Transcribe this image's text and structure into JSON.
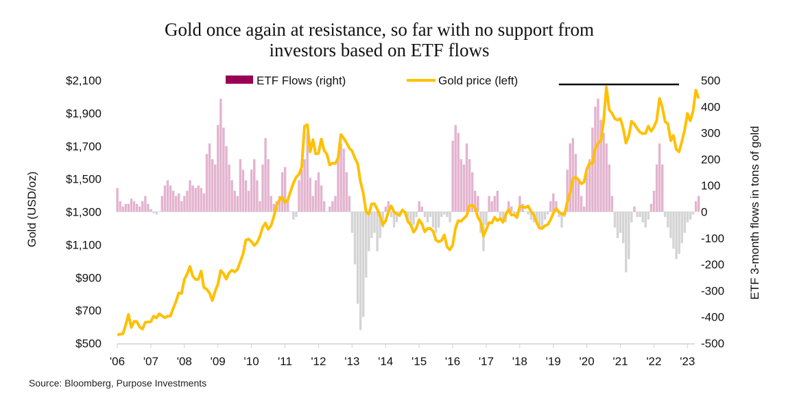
{
  "title_lines": [
    "Gold once again at resistance, so far with no support from",
    "investors based on ETF flows"
  ],
  "source": "Source: Bloomberg, Purpose Investments",
  "chart_data": {
    "type": "bar+line",
    "title": "Gold once again at resistance, so far with no support from investors based on ETF flows",
    "ylabel_left": "Gold (USD/oz)",
    "ylabel_right": "ETF 3-month flows in tons of gold",
    "ylim_left": [
      500,
      2100
    ],
    "ylim_right": [
      -500,
      500
    ],
    "left_ticks": [
      "$2,100",
      "$1,900",
      "$1,700",
      "$1,500",
      "$1,300",
      "$1,100",
      "$900",
      "$700",
      "$500"
    ],
    "left_tick_values": [
      2100,
      1900,
      1700,
      1500,
      1300,
      1100,
      900,
      700,
      500
    ],
    "right_ticks": [
      "500",
      "400",
      "300",
      "200",
      "100",
      "0",
      "-100",
      "-200",
      "-300",
      "-400",
      "-500"
    ],
    "right_tick_values": [
      500,
      400,
      300,
      200,
      100,
      0,
      -100,
      -200,
      -300,
      -400,
      -500
    ],
    "x_ticks": [
      "'06",
      "'07",
      "'08",
      "'09",
      "'10",
      "'11",
      "'12",
      "'13",
      "'14",
      "'15",
      "'16",
      "'17",
      "'18",
      "'19",
      "'20",
      "'21",
      "'22",
      "'23"
    ],
    "x_start": "2006-01",
    "x_frequency": "monthly",
    "grid": false,
    "legend_position": "top",
    "colors": {
      "etf_positive": "#e3b3cf",
      "etf_negative": "#d4d4d4",
      "etf_legend": "#990055",
      "gold": "#ffc000",
      "resistance": "#000000"
    },
    "resistance_line": {
      "value": 2075,
      "from": "2019-03",
      "to": "2022-10"
    },
    "series": [
      {
        "name": "ETF Flows (right)",
        "type": "bar",
        "axis": "right",
        "values": [
          90,
          40,
          20,
          30,
          30,
          50,
          40,
          30,
          20,
          40,
          60,
          30,
          10,
          -5,
          -10,
          0,
          60,
          100,
          120,
          100,
          80,
          60,
          70,
          40,
          60,
          80,
          120,
          100,
          90,
          100,
          90,
          70,
          220,
          260,
          200,
          180,
          330,
          430,
          320,
          250,
          180,
          120,
          80,
          60,
          200,
          160,
          120,
          80,
          160,
          200,
          120,
          40,
          180,
          280,
          200,
          60,
          30,
          40,
          60,
          150,
          170,
          50,
          0,
          -30,
          -20,
          120,
          160,
          200,
          300,
          130,
          60,
          120,
          150,
          100,
          40,
          0,
          20,
          40,
          60,
          200,
          260,
          240,
          150,
          60,
          -80,
          -200,
          -350,
          -450,
          -400,
          -250,
          -150,
          -100,
          -80,
          -150,
          -100,
          -60,
          20,
          40,
          -20,
          -60,
          -40,
          -20,
          10,
          -10,
          -30,
          -60,
          -50,
          -20,
          40,
          20,
          -20,
          -40,
          -20,
          -60,
          -80,
          -60,
          -20,
          -10,
          -20,
          -40,
          270,
          330,
          300,
          200,
          180,
          260,
          200,
          150,
          80,
          60,
          -80,
          -150,
          -50,
          60,
          40,
          60,
          80,
          -20,
          -30,
          -40,
          40,
          20,
          -10,
          -20,
          60,
          30,
          0,
          -10,
          -30,
          -40,
          -50,
          -60,
          -60,
          -30,
          -10,
          40,
          70,
          40,
          -20,
          -60,
          -20,
          160,
          260,
          280,
          220,
          120,
          60,
          20,
          150,
          200,
          320,
          400,
          430,
          350,
          300,
          260,
          180,
          60,
          -60,
          -100,
          -80,
          -120,
          -230,
          -180,
          -40,
          20,
          -20,
          -20,
          -40,
          -60,
          -30,
          30,
          80,
          180,
          260,
          180,
          -20,
          -60,
          -100,
          -140,
          -180,
          -160,
          -120,
          -80,
          -40,
          -30,
          -10,
          40,
          60
        ]
      },
      {
        "name": "Gold price (left)",
        "type": "line",
        "axis": "left",
        "values": [
          550,
          555,
          557,
          610,
          675,
          596,
          633,
          632,
          598,
          586,
          627,
          629,
          631,
          665,
          654,
          679,
          667,
          655,
          665,
          665,
          712,
          754,
          806,
          803,
          889,
          922,
          968,
          909,
          888,
          889,
          939,
          839,
          829,
          806,
          760,
          816,
          858,
          943,
          924,
          890,
          928,
          945,
          934,
          949,
          996,
          1043,
          1127,
          1134,
          1118,
          1095,
          1113,
          1148,
          1205,
          1232,
          1193,
          1215,
          1270,
          1342,
          1370,
          1391,
          1356,
          1372,
          1424,
          1474,
          1510,
          1528,
          1572,
          1820,
          1830,
          1665,
          1739,
          1652,
          1656,
          1742,
          1673,
          1650,
          1585,
          1596,
          1594,
          1626,
          1770,
          1747,
          1721,
          1688,
          1670,
          1627,
          1592,
          1485,
          1414,
          1300,
          1286,
          1347,
          1349,
          1316,
          1275,
          1221,
          1244,
          1300,
          1336,
          1299,
          1287,
          1279,
          1311,
          1296,
          1239,
          1222,
          1176,
          1200,
          1251,
          1227,
          1178,
          1198,
          1199,
          1181,
          1128,
          1117,
          1125,
          1159,
          1086,
          1068,
          1097,
          1199,
          1246,
          1242,
          1260,
          1276,
          1337,
          1340,
          1326,
          1266,
          1238,
          1152,
          1192,
          1234,
          1231,
          1266,
          1246,
          1260,
          1236,
          1283,
          1314,
          1280,
          1283,
          1265,
          1331,
          1331,
          1325,
          1335,
          1303,
          1282,
          1238,
          1202,
          1198,
          1215,
          1221,
          1250,
          1291,
          1320,
          1300,
          1286,
          1284,
          1359,
          1413,
          1500,
          1510,
          1495,
          1471,
          1480,
          1560,
          1597,
          1591,
          1683,
          1716,
          1732,
          1846,
          2060,
          1921,
          1900,
          1866,
          1858,
          1867,
          1808,
          1718,
          1760,
          1850,
          1834,
          1807,
          1785,
          1775,
          1777,
          1821,
          1790,
          1816,
          1856,
          1990,
          1937,
          1848,
          1836,
          1733,
          1764,
          1680,
          1665,
          1726,
          1798,
          1898,
          1854,
          1913,
          2040,
          1990
        ]
      }
    ]
  }
}
